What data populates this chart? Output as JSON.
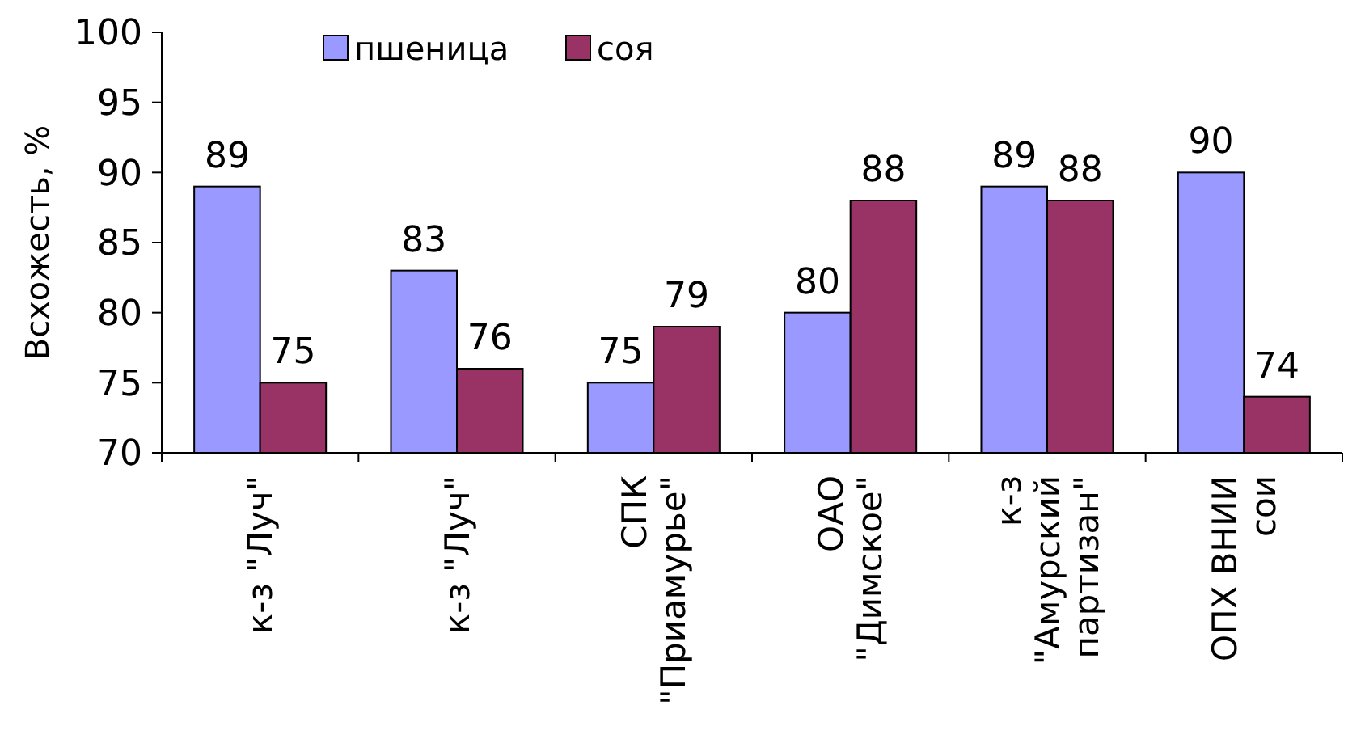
{
  "chart_data": {
    "type": "bar",
    "ylabel": "Всхожесть, %",
    "categories": [
      "к-з \"Луч\"",
      "к-з \"Луч\"",
      "СПК \"Приамурье\"",
      "ОАО \"Димское\"",
      "к-з \"Амурский партизан\"",
      "ОПХ ВНИИ сои"
    ],
    "series": [
      {
        "name": "пшеница",
        "color": "#9999ff",
        "values": [
          89,
          83,
          75,
          80,
          89,
          90
        ]
      },
      {
        "name": "соя",
        "color": "#993366",
        "values": [
          75,
          76,
          79,
          88,
          88,
          74
        ]
      }
    ],
    "ylim": [
      70,
      100
    ],
    "yticks": [
      70,
      75,
      80,
      85,
      90,
      95,
      100
    ],
    "data_labels": true,
    "legend": "top",
    "grid": false
  }
}
